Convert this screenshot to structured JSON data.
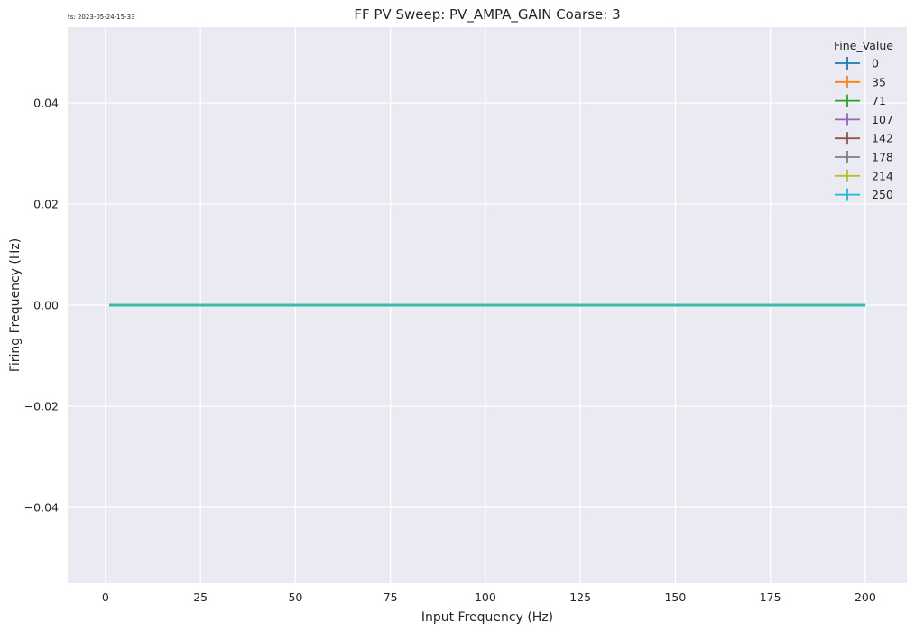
{
  "timestamp": "ts: 2023-05-24-15-33",
  "chart_data": {
    "type": "line",
    "title": "FF PV Sweep: PV_AMPA_GAIN Coarse: 3",
    "xlabel": "Input Frequency (Hz)",
    "ylabel": "Firing Frequency (Hz)",
    "xlim": [
      -9.95,
      210.95
    ],
    "ylim": [
      -0.055,
      0.055
    ],
    "x_ticks": [
      0,
      25,
      50,
      75,
      100,
      125,
      150,
      175,
      200
    ],
    "y_ticks": [
      -0.04,
      -0.02,
      0.0,
      0.02,
      0.04
    ],
    "y_tick_labels": [
      "−0.04",
      "−0.02",
      "0.00",
      "0.02",
      "0.04"
    ],
    "grid": true,
    "legend": {
      "title": "Fine_Value",
      "placement": "top-right"
    },
    "x_range": [
      1,
      200
    ],
    "series": [
      {
        "name": "0",
        "color": "#1f77b4",
        "x": [
          1,
          200
        ],
        "y": [
          0,
          0
        ]
      },
      {
        "name": "35",
        "color": "#ff7f0e",
        "x": [
          1,
          200
        ],
        "y": [
          0,
          0
        ]
      },
      {
        "name": "71",
        "color": "#2ca02c",
        "x": [
          1,
          200
        ],
        "y": [
          0,
          0
        ]
      },
      {
        "name": "107",
        "color": "#9467bd",
        "x": [
          1,
          200
        ],
        "y": [
          0,
          0
        ]
      },
      {
        "name": "142",
        "color": "#8c564b",
        "x": [
          1,
          200
        ],
        "y": [
          0,
          0
        ]
      },
      {
        "name": "178",
        "color": "#7f7f7f",
        "x": [
          1,
          200
        ],
        "y": [
          0,
          0
        ]
      },
      {
        "name": "214",
        "color": "#bcbd22",
        "x": [
          1,
          200
        ],
        "y": [
          0,
          0
        ]
      },
      {
        "name": "250",
        "color": "#17becf",
        "x": [
          1,
          200
        ],
        "y": [
          0,
          0
        ]
      }
    ]
  }
}
